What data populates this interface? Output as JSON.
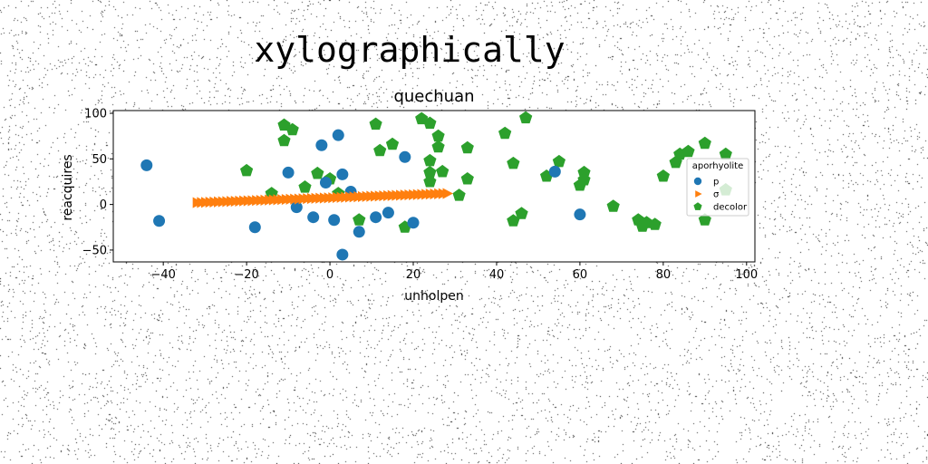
{
  "chart_data": {
    "type": "scatter",
    "suptitle": "xylographically",
    "title": "quechuan",
    "xlabel": "unholpen",
    "ylabel": "reacquires",
    "xlim": [
      -52,
      102
    ],
    "ylim": [
      -63,
      103
    ],
    "xticks": [
      -40,
      -20,
      0,
      20,
      40,
      60,
      80,
      100
    ],
    "yticks": [
      -50,
      0,
      50,
      100
    ],
    "xtick_labels": [
      "−40",
      "−20",
      "0",
      "20",
      "40",
      "60",
      "80",
      "100"
    ],
    "ytick_labels": [
      "−50",
      "0",
      "50",
      "100"
    ],
    "grid": false,
    "legend": {
      "title": "aporhyolite",
      "placement": "center-right"
    },
    "series": [
      {
        "name": "p",
        "marker": "circle",
        "color": "#1f77b4",
        "points": [
          [
            -44,
            43
          ],
          [
            -41,
            -18
          ],
          [
            -18,
            -25
          ],
          [
            -10,
            35
          ],
          [
            -8,
            -3
          ],
          [
            -4,
            -14
          ],
          [
            -2,
            65
          ],
          [
            -1,
            24
          ],
          [
            1,
            -17
          ],
          [
            2,
            76
          ],
          [
            3,
            -55
          ],
          [
            3,
            33
          ],
          [
            5,
            14
          ],
          [
            7,
            -30
          ],
          [
            11,
            -14
          ],
          [
            14,
            -9
          ],
          [
            18,
            52
          ],
          [
            20,
            -20
          ],
          [
            54,
            36
          ],
          [
            60,
            -11
          ]
        ]
      },
      {
        "name": "σ",
        "marker": "triangle-right",
        "color": "#ff7f0e",
        "x_range": [
          -32,
          28
        ],
        "y_range": [
          2,
          12
        ],
        "count": 60
      },
      {
        "name": "decolor",
        "marker": "pentagon",
        "color": "#2ca02c",
        "points": [
          [
            -20,
            37
          ],
          [
            -14,
            12
          ],
          [
            -11,
            87
          ],
          [
            -11,
            70
          ],
          [
            -9,
            82
          ],
          [
            -6,
            19
          ],
          [
            -3,
            34
          ],
          [
            0,
            28
          ],
          [
            2,
            12
          ],
          [
            7,
            -17
          ],
          [
            11,
            88
          ],
          [
            12,
            59
          ],
          [
            15,
            66
          ],
          [
            18,
            -25
          ],
          [
            22,
            94
          ],
          [
            24,
            89
          ],
          [
            24,
            48
          ],
          [
            24,
            35
          ],
          [
            24,
            25
          ],
          [
            26,
            75
          ],
          [
            26,
            63
          ],
          [
            27,
            36
          ],
          [
            31,
            10
          ],
          [
            33,
            62
          ],
          [
            33,
            28
          ],
          [
            42,
            78
          ],
          [
            44,
            45
          ],
          [
            44,
            -18
          ],
          [
            46,
            -10
          ],
          [
            47,
            95
          ],
          [
            52,
            31
          ],
          [
            55,
            47
          ],
          [
            60,
            21
          ],
          [
            61,
            35
          ],
          [
            61,
            27
          ],
          [
            68,
            -2
          ],
          [
            74,
            -17
          ],
          [
            75,
            -24
          ],
          [
            76,
            -20
          ],
          [
            78,
            -22
          ],
          [
            80,
            31
          ],
          [
            83,
            46
          ],
          [
            84,
            55
          ],
          [
            86,
            58
          ],
          [
            90,
            67
          ],
          [
            90,
            -17
          ],
          [
            95,
            55
          ],
          [
            95,
            16
          ]
        ]
      }
    ]
  }
}
